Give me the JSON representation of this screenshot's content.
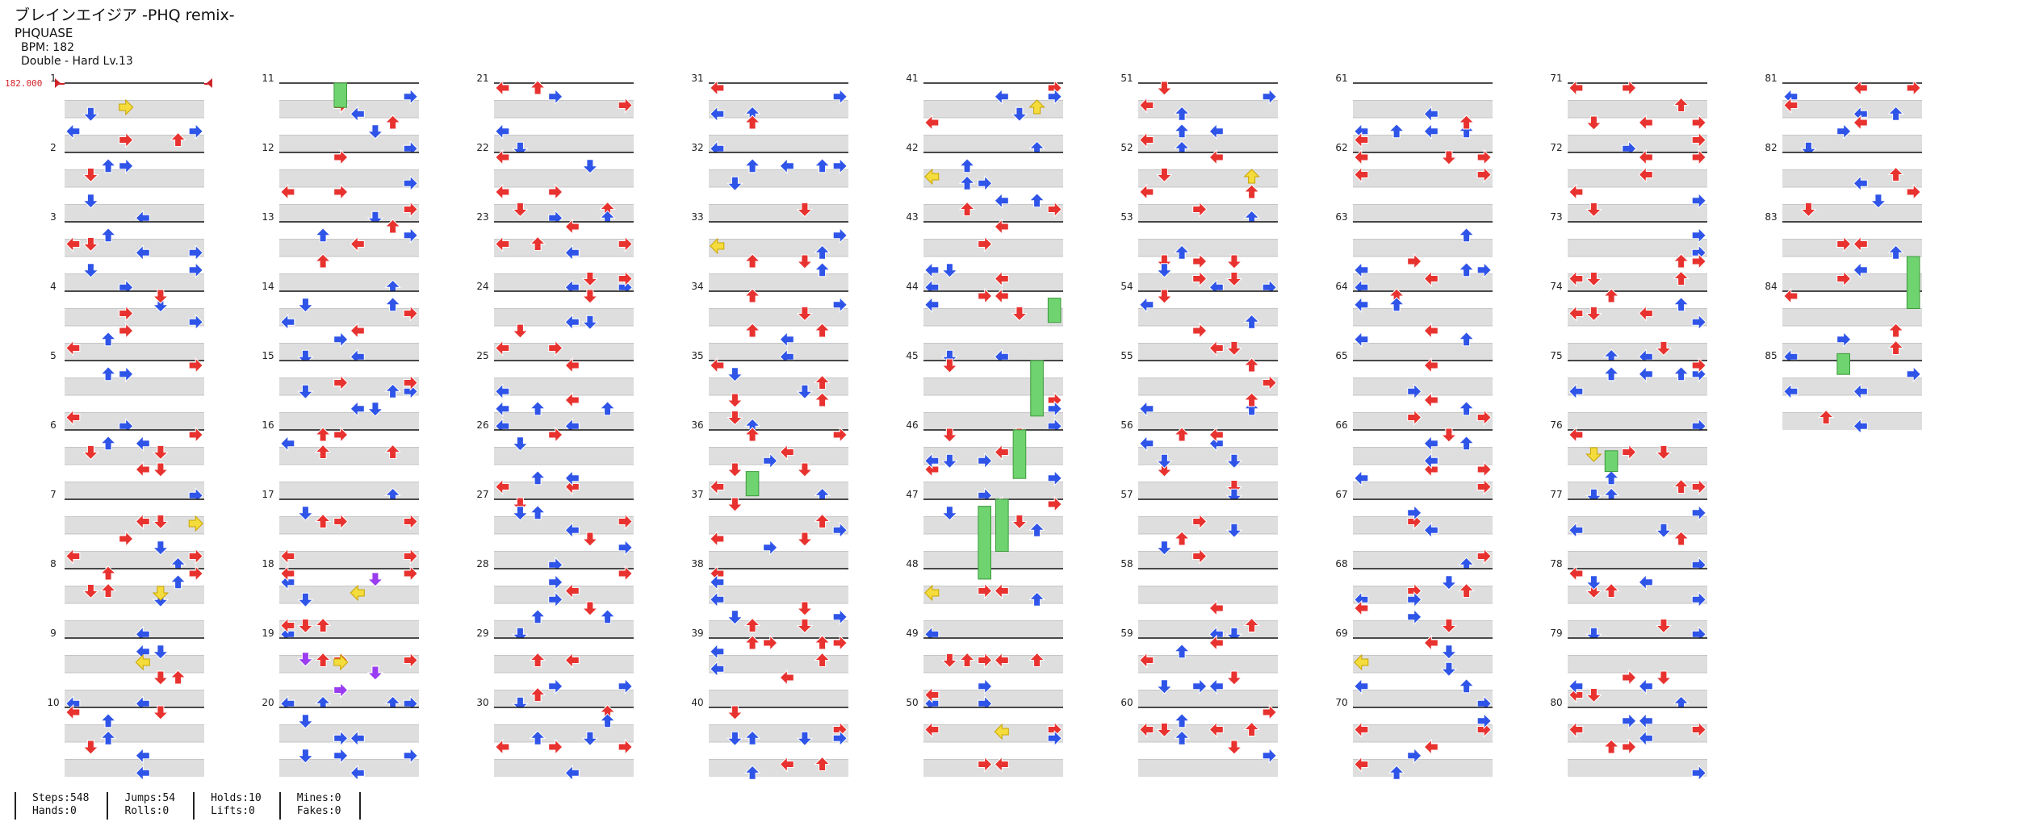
{
  "song": {
    "title": "ブレインエイジア -PHQ remix-",
    "artist": "PHQUASE",
    "bpm_text": "BPM: 182",
    "difficulty_text": "Double - Hard Lv.13"
  },
  "bpm_marker": "182.000",
  "colors": {
    "red": "#e8322f",
    "blue": "#2f54e8",
    "yellow": "#f4dc3c",
    "purple": "#9a3cf0",
    "hold": "#6fd36f",
    "row_gray": "#dedede",
    "measure_line": "#111111"
  },
  "chart": {
    "measures_total": 85,
    "measures_per_column": 10,
    "measure_labels": [
      "1",
      "2",
      "3",
      "4",
      "5",
      "6",
      "7",
      "8",
      "9",
      "10",
      "11",
      "12",
      "13",
      "14",
      "15",
      "16",
      "17",
      "18",
      "19",
      "20",
      "21",
      "22",
      "23",
      "24",
      "25",
      "26",
      "27",
      "28",
      "29",
      "30",
      "31",
      "32",
      "33",
      "34",
      "35",
      "36",
      "37",
      "38",
      "39",
      "40",
      "41",
      "42",
      "43",
      "44",
      "45",
      "46",
      "47",
      "48",
      "49",
      "50",
      "51",
      "52",
      "53",
      "54",
      "55",
      "56",
      "57",
      "58",
      "59",
      "60",
      "61",
      "62",
      "63",
      "64",
      "65",
      "66",
      "67",
      "68",
      "69",
      "70",
      "71",
      "72",
      "73",
      "74",
      "75",
      "76",
      "77",
      "78",
      "79",
      "80",
      "81",
      "82",
      "83",
      "84",
      "85"
    ],
    "arrow_icons": [
      "left-arrow-icon",
      "down-arrow-icon",
      "up-arrow-icon",
      "right-arrow-icon"
    ]
  },
  "stats": [
    {
      "steps": "Steps:548",
      "hands": "Hands:0"
    },
    {
      "jumps": "Jumps:54",
      "rolls": "Rolls:0"
    },
    {
      "holds": "Holds:10",
      "lifts": "Lifts:0"
    },
    {
      "mines": "Mines:0",
      "fakes": "Fakes:0"
    }
  ]
}
